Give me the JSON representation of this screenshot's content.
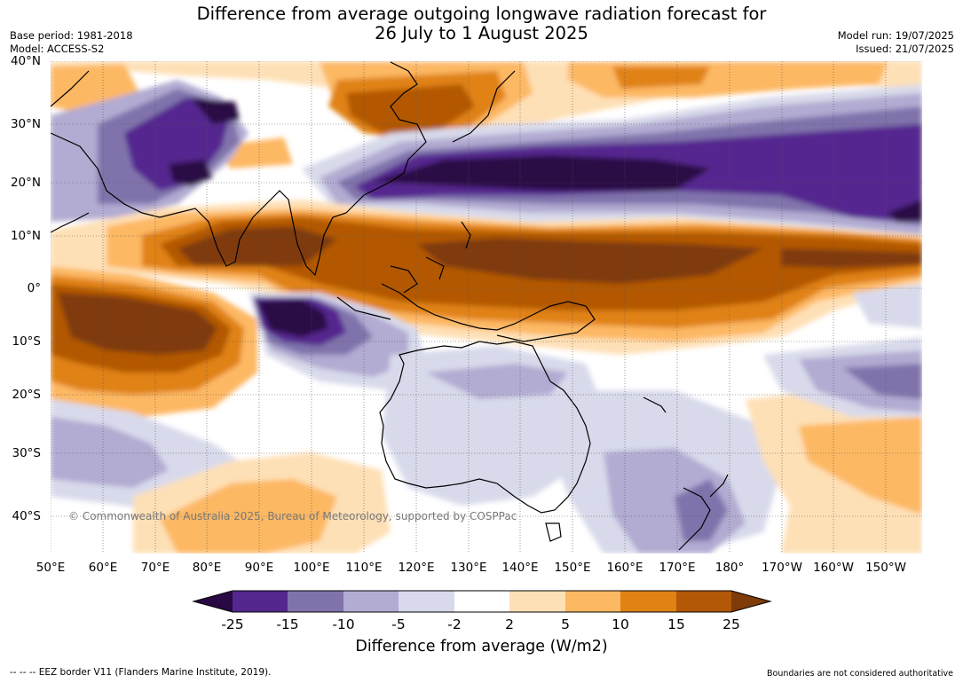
{
  "header": {
    "title_line1": "Difference from average outgoing longwave radiation forecast for",
    "title_line2": "26 July to 1 August 2025",
    "base_period": "Base period: 1981-2018",
    "model": "Model: ACCESS-S2",
    "model_run": "Model run: 19/07/2025",
    "issued": "Issued: 21/07/2025"
  },
  "map": {
    "lat_labels": [
      "40°N",
      "30°N",
      "20°N",
      "10°N",
      "0°",
      "10°S",
      "20°S",
      "30°S",
      "40°S"
    ],
    "lon_labels": [
      "50°E",
      "60°E",
      "70°E",
      "80°E",
      "90°E",
      "100°E",
      "110°E",
      "120°E",
      "130°E",
      "140°E",
      "150°E",
      "160°E",
      "170°E",
      "180°",
      "170°W",
      "160°W",
      "150°W"
    ],
    "copyright": "© Commonwealth of Australia 2025, Bureau of Meteorology, supported by COSPPac"
  },
  "colorbar": {
    "ticks": [
      "-25",
      "-15",
      "-10",
      "-5",
      "-2",
      "2",
      "5",
      "10",
      "15",
      "25"
    ],
    "colors": {
      "lt_neg25": "#2a0844",
      "neg25_neg15": "#54278f",
      "neg15_neg10": "#8073ac",
      "neg10_neg5": "#b2abd2",
      "neg5_neg2": "#d8daeb",
      "neg2_2": "#ffffff",
      "2_5": "#fee0b6",
      "5_10": "#fdb863",
      "10_15": "#e08214",
      "15_25": "#b35806",
      "gt_25": "#7f3b08"
    },
    "label": "Difference from average (W/m2)"
  },
  "footer": {
    "eez": "-- -- -- EEZ border V11 (Flanders Marine Institute, 2019).",
    "boundaries": "Boundaries are not considered authoritative"
  }
}
